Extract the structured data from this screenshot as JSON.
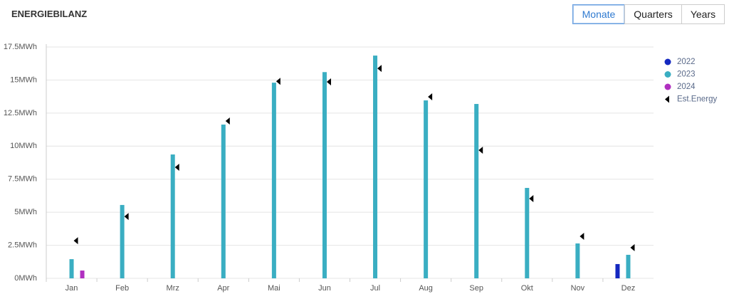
{
  "header": {
    "title": "ENERGIEBILANZ",
    "buttons": [
      "Monate",
      "Quarters",
      "Years"
    ]
  },
  "chart_data": {
    "type": "bar",
    "categories": [
      "Jan",
      "Feb",
      "Mrz",
      "Apr",
      "Mai",
      "Jun",
      "Jul",
      "Aug",
      "Sep",
      "Okt",
      "Nov",
      "Dez"
    ],
    "series": [
      {
        "name": "2022",
        "color": "#1428c0",
        "values": [
          null,
          null,
          null,
          null,
          null,
          null,
          null,
          null,
          null,
          null,
          null,
          1.08
        ]
      },
      {
        "name": "2023",
        "color": "#3aaec2",
        "values": [
          1.45,
          5.55,
          9.37,
          11.63,
          14.8,
          15.6,
          16.85,
          13.46,
          13.19,
          6.84,
          2.64,
          1.78
        ]
      },
      {
        "name": "2024",
        "color": "#b030c0",
        "values": [
          0.59,
          null,
          null,
          null,
          null,
          null,
          null,
          null,
          null,
          null,
          null,
          null
        ]
      },
      {
        "name": "Est.Energy",
        "color": "#000000",
        "marker": "triangle",
        "values": [
          2.85,
          4.68,
          8.4,
          11.9,
          14.9,
          14.86,
          15.88,
          13.73,
          9.69,
          6.03,
          3.18,
          2.32
        ]
      }
    ],
    "ylim": [
      0,
      17.5
    ],
    "yticks": [
      {
        "value": 0,
        "label": "0MWh"
      },
      {
        "value": 2.5,
        "label": "2.5MWh"
      },
      {
        "value": 5,
        "label": "5MWh"
      },
      {
        "value": 7.5,
        "label": "7.5MWh"
      },
      {
        "value": 10,
        "label": "10MWh"
      },
      {
        "value": 12.5,
        "label": "12.5MWh"
      },
      {
        "value": 15,
        "label": "15MWh"
      },
      {
        "value": 17.5,
        "label": "17.5MWh"
      }
    ],
    "grid": true,
    "legend": "right"
  }
}
